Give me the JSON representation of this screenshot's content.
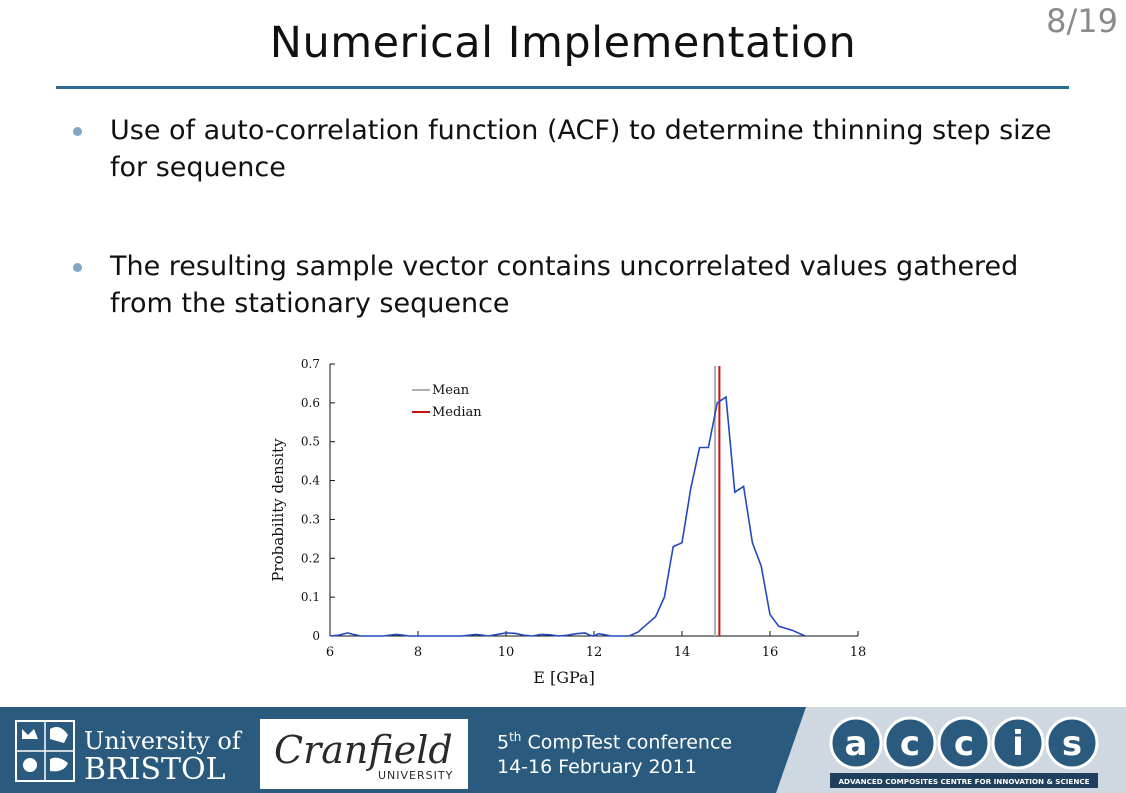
{
  "slide": {
    "title": "Numerical Implementation",
    "page_number": "8/19"
  },
  "bullets": [
    "Use of auto-correlation function (ACF) to determine thinning step size for sequence",
    "The resulting sample vector contains uncorrelated values gathered from the stationary sequence"
  ],
  "chart_data": {
    "type": "line",
    "xlabel": "E [GPa]",
    "ylabel": "Probability density",
    "xlim": [
      6,
      18
    ],
    "ylim": [
      0,
      0.7
    ],
    "xticks": [
      "6",
      "8",
      "10",
      "12",
      "14",
      "16",
      "18"
    ],
    "yticks": [
      "0",
      "0.1",
      "0.2",
      "0.3",
      "0.4",
      "0.5",
      "0.6",
      "0.7"
    ],
    "legend_position": "top-left",
    "series": [
      {
        "color": "#2448c0",
        "x": [
          6.0,
          6.2,
          6.4,
          6.5,
          6.7,
          6.9,
          7.2,
          7.5,
          7.6,
          7.8,
          8.2,
          8.6,
          9.0,
          9.3,
          9.4,
          9.6,
          9.9,
          10.0,
          10.2,
          10.4,
          10.6,
          10.8,
          11.0,
          11.2,
          11.4,
          11.6,
          11.8,
          11.9,
          12.0,
          12.1,
          12.2,
          12.4,
          12.6,
          12.8,
          13.0,
          13.2,
          13.4,
          13.6,
          13.8,
          14.0,
          14.2,
          14.4,
          14.6,
          14.8,
          15.0,
          15.2,
          15.4,
          15.6,
          15.8,
          16.0,
          16.2,
          16.5,
          16.8
        ],
        "y": [
          0.0,
          0.002,
          0.008,
          0.005,
          0.0,
          0.0,
          0.0,
          0.004,
          0.003,
          0.0,
          0.0,
          0.0,
          0.0,
          0.004,
          0.003,
          0.0,
          0.006,
          0.008,
          0.007,
          0.002,
          0.0,
          0.004,
          0.003,
          0.0,
          0.002,
          0.006,
          0.008,
          0.002,
          0.0,
          0.006,
          0.004,
          0.0,
          0.0,
          0.0,
          0.01,
          0.03,
          0.05,
          0.1,
          0.23,
          0.24,
          0.38,
          0.485,
          0.485,
          0.6,
          0.615,
          0.37,
          0.385,
          0.24,
          0.18,
          0.055,
          0.025,
          0.015,
          0.0
        ]
      }
    ],
    "reference_lines": [
      {
        "name": "Mean",
        "x": 14.75,
        "color": "#b0b0b0"
      },
      {
        "name": "Median",
        "x": 14.85,
        "color": "#cc1111"
      }
    ]
  },
  "footer": {
    "bristol_logo_text": [
      "University of",
      "BRISTOL"
    ],
    "cranfield_logo_text": [
      "Cranfield",
      "UNIVERSITY"
    ],
    "conference_line1_prefix": "5",
    "conference_line1_sup": "th",
    "conference_line1_suffix": " CompTest conference",
    "conference_line2": "14-16 February 2011",
    "accis_letters": [
      "a",
      "c",
      "c",
      "i",
      "s"
    ],
    "accis_tagline": "ADVANCED COMPOSITES CENTRE FOR INNOVATION & SCIENCE"
  }
}
